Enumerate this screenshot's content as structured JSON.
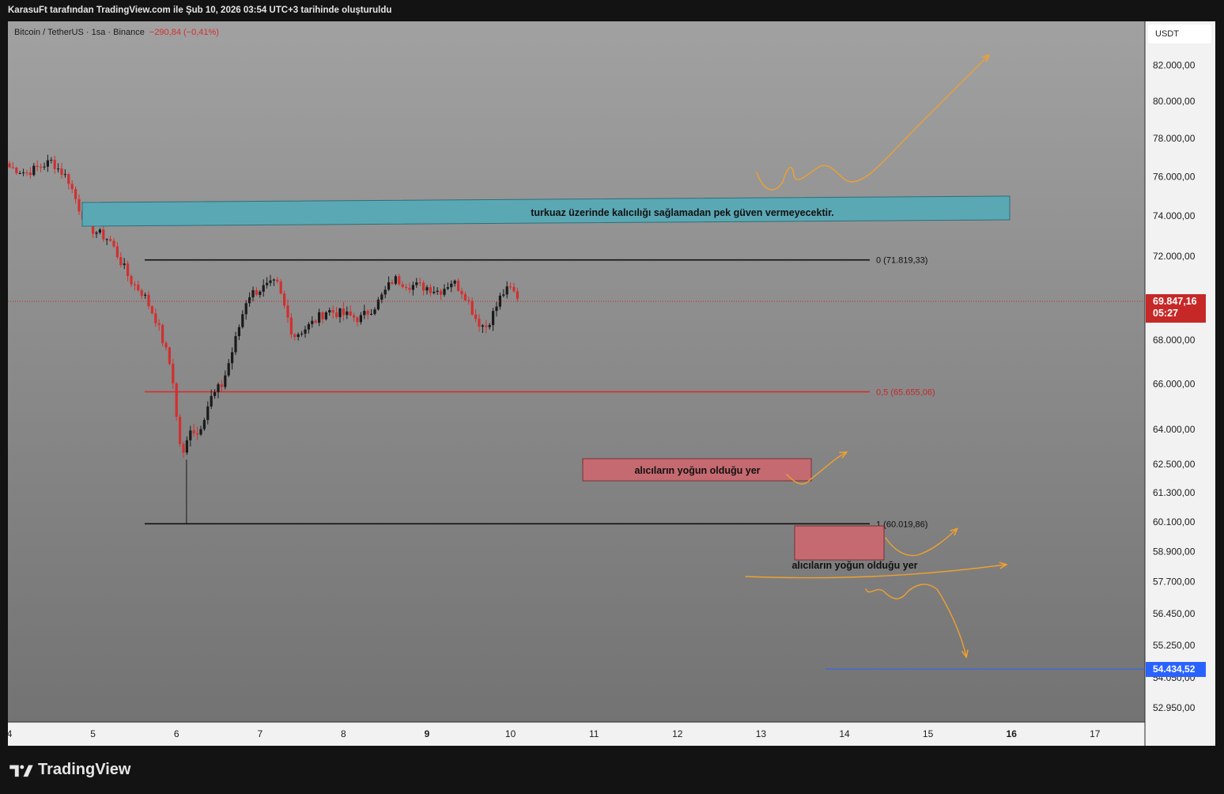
{
  "caption": "KarasuFt tarafından TradingView.com ile Şub 10, 2026 03:54 UTC+3 tarihinde oluşturuldu",
  "legend": {
    "symbol": "Bitcoin / TetherUS · 1sa · Binance",
    "change": "−290,84 (−0,41%)"
  },
  "currency_button": "USDT",
  "current_price": {
    "value": 69847.16,
    "label": "69.847,16",
    "countdown": "05:27"
  },
  "blue_line": {
    "value": 54434.52,
    "label": "54.434,52"
  },
  "brand": {
    "name": "TradingView"
  },
  "colors": {
    "up": "#1a1a1a",
    "down": "#d32f2f",
    "fib_black": "#111111",
    "fib_mid": "#d32f2f",
    "teal_box": "#5ba8b5",
    "red_box": "#c56a70",
    "arrow": "#f0a030",
    "blue_line": "#2962ff"
  },
  "chart_data": {
    "type": "candlestick",
    "interval": "1h",
    "scale": "log",
    "x_ticks": [
      {
        "label": "4",
        "day": 4,
        "bold": false
      },
      {
        "label": "5",
        "day": 5,
        "bold": false
      },
      {
        "label": "6",
        "day": 6,
        "bold": false
      },
      {
        "label": "7",
        "day": 7,
        "bold": false
      },
      {
        "label": "8",
        "day": 8,
        "bold": false
      },
      {
        "label": "9",
        "day": 9,
        "bold": true
      },
      {
        "label": "10",
        "day": 10,
        "bold": false
      },
      {
        "label": "11",
        "day": 11,
        "bold": false
      },
      {
        "label": "12",
        "day": 12,
        "bold": false
      },
      {
        "label": "13",
        "day": 13,
        "bold": false
      },
      {
        "label": "14",
        "day": 14,
        "bold": false
      },
      {
        "label": "15",
        "day": 15,
        "bold": false
      },
      {
        "label": "16",
        "day": 16,
        "bold": true
      },
      {
        "label": "17",
        "day": 17,
        "bold": false
      }
    ],
    "y_ticks": [
      {
        "label": "82.000,00",
        "value": 82000
      },
      {
        "label": "80.000,00",
        "value": 80000
      },
      {
        "label": "78.000,00",
        "value": 78000
      },
      {
        "label": "76.000,00",
        "value": 76000
      },
      {
        "label": "74.000,00",
        "value": 74000
      },
      {
        "label": "72.000,00",
        "value": 72000
      },
      {
        "label": "68.000,00",
        "value": 68000
      },
      {
        "label": "66.000,00",
        "value": 66000
      },
      {
        "label": "64.000,00",
        "value": 64000
      },
      {
        "label": "62.500,00",
        "value": 62500
      },
      {
        "label": "61.300,00",
        "value": 61300
      },
      {
        "label": "60.100,00",
        "value": 60100
      },
      {
        "label": "58.900,00",
        "value": 58900
      },
      {
        "label": "57.700,00",
        "value": 57700
      },
      {
        "label": "56.450,00",
        "value": 56450
      },
      {
        "label": "55.250,00",
        "value": 55250
      },
      {
        "label": "54.050,00",
        "value": 54050
      },
      {
        "label": "52.950,00",
        "value": 52950
      }
    ],
    "path_points": [
      [
        4.0,
        76500
      ],
      [
        4.2,
        76200
      ],
      [
        4.5,
        76800
      ],
      [
        4.7,
        75900
      ],
      [
        4.85,
        74200
      ],
      [
        5.0,
        73300
      ],
      [
        5.2,
        72800
      ],
      [
        5.45,
        70800
      ],
      [
        5.6,
        70200
      ],
      [
        5.75,
        69000
      ],
      [
        5.85,
        67800
      ],
      [
        5.95,
        66500
      ],
      [
        6.0,
        64500
      ],
      [
        6.05,
        63200
      ],
      [
        6.1,
        62700
      ],
      [
        6.15,
        64200
      ],
      [
        6.25,
        63800
      ],
      [
        6.4,
        65300
      ],
      [
        6.55,
        66000
      ],
      [
        6.7,
        67900
      ],
      [
        6.85,
        70100
      ],
      [
        7.0,
        70400
      ],
      [
        7.2,
        70700
      ],
      [
        7.4,
        68200
      ],
      [
        7.6,
        68700
      ],
      [
        7.8,
        69400
      ],
      [
        8.0,
        69200
      ],
      [
        8.2,
        69000
      ],
      [
        8.4,
        69700
      ],
      [
        8.6,
        70900
      ],
      [
        8.8,
        70600
      ],
      [
        9.0,
        70500
      ],
      [
        9.15,
        70300
      ],
      [
        9.3,
        70800
      ],
      [
        9.45,
        70200
      ],
      [
        9.6,
        68900
      ],
      [
        9.7,
        68600
      ],
      [
        9.8,
        69300
      ],
      [
        9.9,
        70200
      ],
      [
        10.0,
        70400
      ],
      [
        10.15,
        69800
      ]
    ],
    "fib_levels": [
      {
        "ratio_label": "0",
        "value": 71819.33,
        "label": "0 (71.819,33)",
        "color": "black"
      },
      {
        "ratio_label": "0,5",
        "value": 65655.06,
        "label": "0,5 (65.655,06)",
        "color": "red"
      },
      {
        "ratio_label": "1",
        "value": 60019.86,
        "label": "1 (60.019,86)",
        "color": "black"
      }
    ],
    "annotations": [
      {
        "type": "box",
        "text": "turkuaz üzerinde kalıcılığı sağlamadan pek güven vermeyecektir.",
        "color": "teal"
      },
      {
        "type": "box",
        "text": "alıcıların yoğun olduğu yer",
        "color": "red"
      },
      {
        "type": "box",
        "text": "alıcıların yoğun olduğu yer",
        "color": "red"
      }
    ]
  }
}
